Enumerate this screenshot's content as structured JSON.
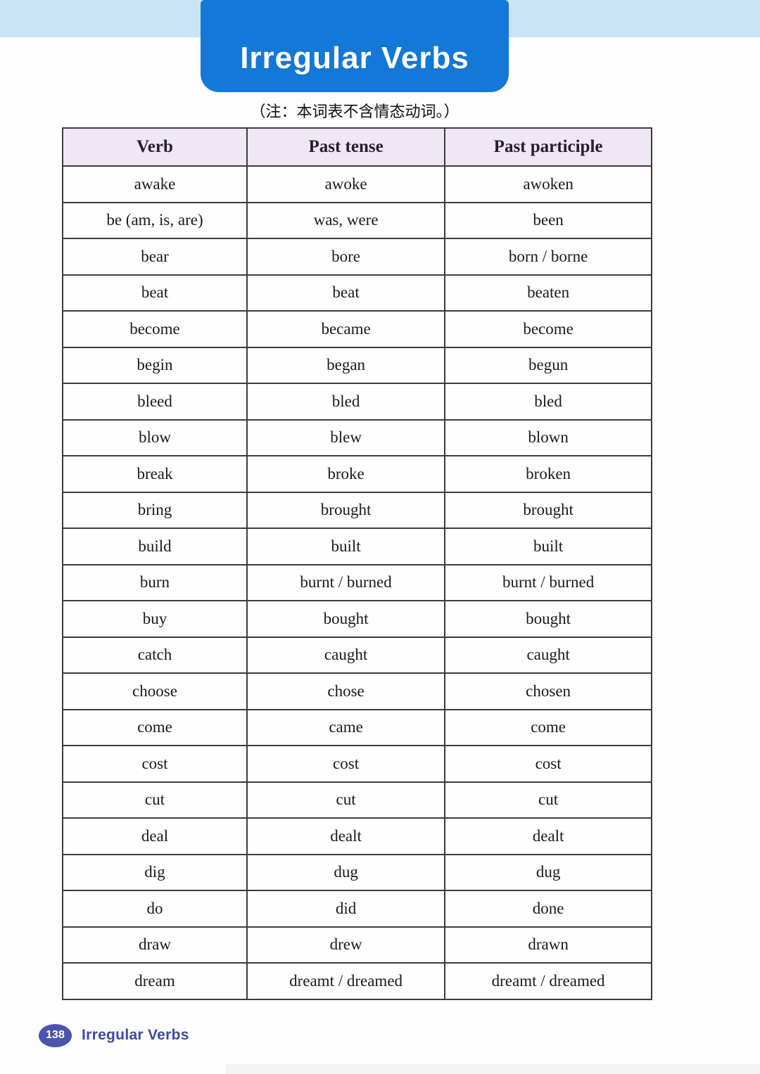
{
  "banner": {
    "title": "Irregular Verbs"
  },
  "note": "（注：本词表不含情态动词。）",
  "table": {
    "headers": [
      "Verb",
      "Past tense",
      "Past participle"
    ],
    "rows": [
      [
        "awake",
        "awoke",
        "awoken"
      ],
      [
        "be (am, is, are)",
        "was, were",
        "been"
      ],
      [
        "bear",
        "bore",
        "born / borne"
      ],
      [
        "beat",
        "beat",
        "beaten"
      ],
      [
        "become",
        "became",
        "become"
      ],
      [
        "begin",
        "began",
        "begun"
      ],
      [
        "bleed",
        "bled",
        "bled"
      ],
      [
        "blow",
        "blew",
        "blown"
      ],
      [
        "break",
        "broke",
        "broken"
      ],
      [
        "bring",
        "brought",
        "brought"
      ],
      [
        "build",
        "built",
        "built"
      ],
      [
        "burn",
        "burnt / burned",
        "burnt / burned"
      ],
      [
        "buy",
        "bought",
        "bought"
      ],
      [
        "catch",
        "caught",
        "caught"
      ],
      [
        "choose",
        "chose",
        "chosen"
      ],
      [
        "come",
        "came",
        "come"
      ],
      [
        "cost",
        "cost",
        "cost"
      ],
      [
        "cut",
        "cut",
        "cut"
      ],
      [
        "deal",
        "dealt",
        "dealt"
      ],
      [
        "dig",
        "dug",
        "dug"
      ],
      [
        "do",
        "did",
        "done"
      ],
      [
        "draw",
        "drew",
        "drawn"
      ],
      [
        "dream",
        "dreamt / dreamed",
        "dreamt / dreamed"
      ]
    ]
  },
  "footer": {
    "page_number": "138",
    "section_title": "Irregular Verbs"
  },
  "colors": {
    "banner_blue": "#1478d8",
    "top_band_blue": "#c9e4f7",
    "header_lavender": "#efe7f3",
    "badge_indigo": "#4a54ae",
    "footer_text_blue": "#3a4aa6",
    "table_border_gray": "#3c3c3c"
  }
}
